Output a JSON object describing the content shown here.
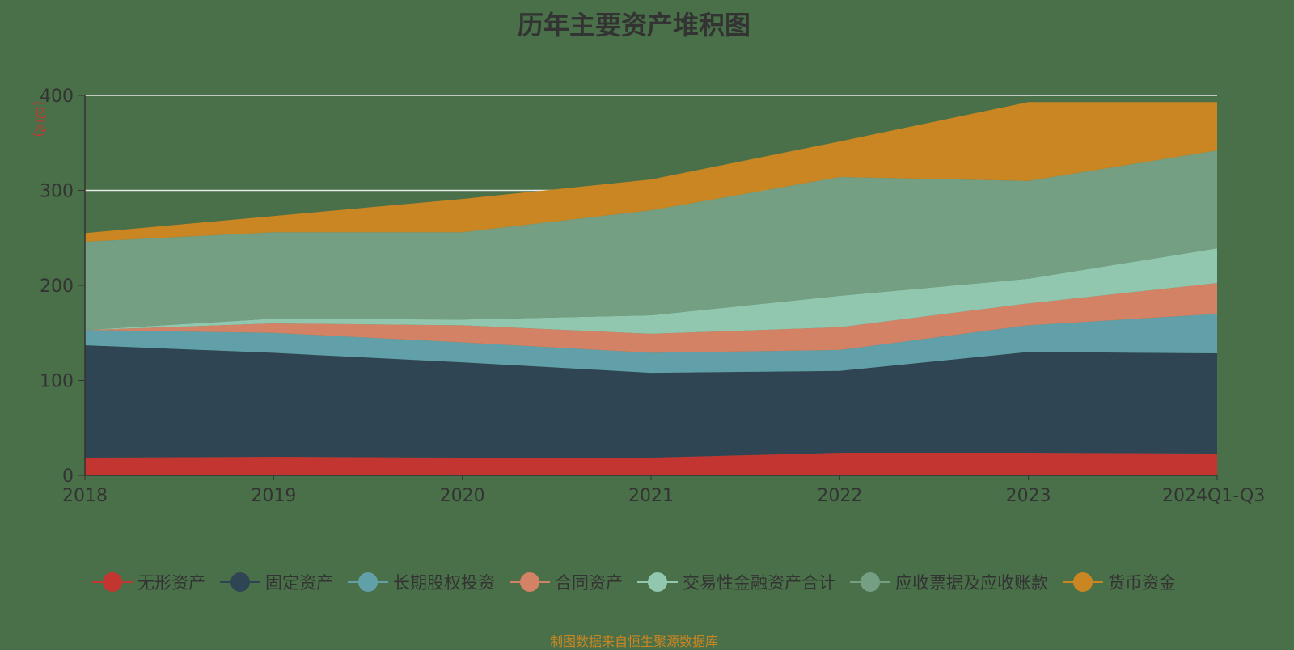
{
  "chart_data": {
    "type": "area",
    "stacked": true,
    "title": "历年主要资产堆积图",
    "ylabel": "(亿元)",
    "ylim": [
      0,
      400
    ],
    "yticks": [
      0,
      100,
      200,
      300,
      400
    ],
    "categories": [
      "2018",
      "2019",
      "2020",
      "2021",
      "2022",
      "2023",
      "2024Q1-Q3"
    ],
    "grid": true,
    "legend_position": "bottom",
    "series": [
      {
        "name": "无形资产",
        "color": "#c23531",
        "values": [
          18.7,
          19.6,
          18.7,
          18.7,
          23.8,
          23.8,
          23
        ]
      },
      {
        "name": "固定资产",
        "color": "#2f4554",
        "values": [
          118.3,
          109.4,
          100.3,
          89.3,
          86.2,
          106.2,
          105.5
        ]
      },
      {
        "name": "长期股权投资",
        "color": "#61a0a8",
        "values": [
          16,
          21,
          21,
          21,
          22,
          28,
          41.5
        ]
      },
      {
        "name": "合同资产",
        "color": "#d48265",
        "values": [
          0,
          10,
          18,
          20,
          24,
          23,
          32.5
        ]
      },
      {
        "name": "交易性金融资产合计",
        "color": "#91c7ae",
        "values": [
          0,
          5,
          6,
          19.5,
          33,
          26,
          36.5
        ]
      },
      {
        "name": "应收票据及应收账款",
        "color": "#749f83",
        "values": [
          93,
          91,
          92,
          110.5,
          125,
          103,
          103
        ]
      },
      {
        "name": "货币资金",
        "color": "#ca8622",
        "values": [
          9,
          17,
          35,
          32.5,
          37.5,
          83,
          51
        ]
      }
    ]
  },
  "footer": "制图数据来自恒生聚源数据库"
}
